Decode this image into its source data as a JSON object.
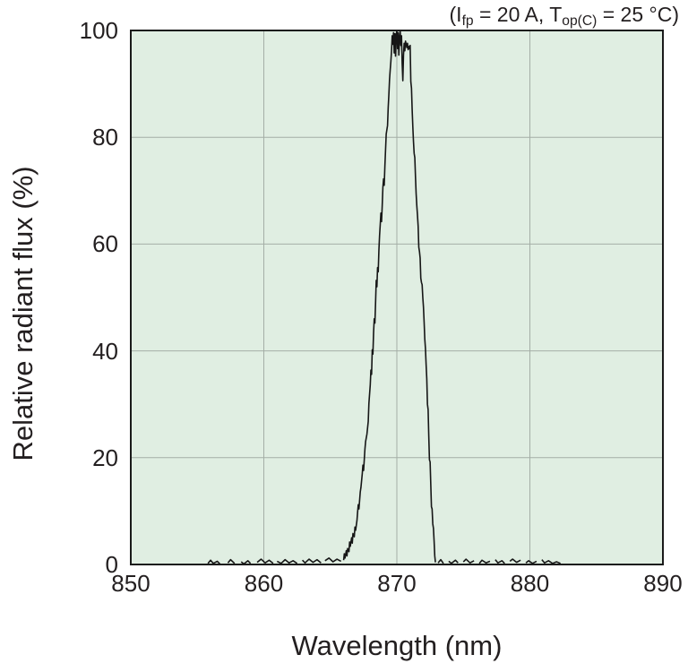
{
  "chart_data": {
    "type": "line",
    "title": "",
    "annotation_text": "(Ifp = 20 A, Top(C) = 25 °C)",
    "annotation_parts": [
      {
        "text": "(I"
      },
      {
        "text": "fp",
        "sub": true
      },
      {
        "text": " = 20 A, T"
      },
      {
        "text": "op(C)",
        "sub": true
      },
      {
        "text": " = 25 °C)"
      }
    ],
    "xlabel": "Wavelength (nm)",
    "ylabel": "Relative radiant flux (%)",
    "xlim": [
      850,
      890
    ],
    "ylim": [
      0,
      100
    ],
    "xticks": [
      850,
      860,
      870,
      880,
      890
    ],
    "yticks": [
      0,
      20,
      40,
      60,
      80,
      100
    ],
    "gridlines": {
      "x": [
        860,
        870,
        880
      ],
      "y": [
        20,
        40,
        60,
        80
      ]
    },
    "legend": "none",
    "peak_wavelength_nm": 870,
    "colors": {
      "plot_bg": "#e0eee2",
      "grid": "#a4aea6",
      "frame": "#1a1a1a",
      "trace": "#161616",
      "text": "#231f20"
    },
    "segments": [
      [
        [
          855.8,
          0.2
        ],
        [
          856.0,
          0.8
        ],
        [
          856.2,
          0.2
        ],
        [
          856.5,
          0.6
        ],
        [
          856.7,
          0.1
        ]
      ],
      [
        [
          857.3,
          0.3
        ],
        [
          857.5,
          0.9
        ],
        [
          857.8,
          0.2
        ]
      ],
      [
        [
          858.3,
          0.5
        ],
        [
          858.5,
          0.1
        ],
        [
          858.8,
          0.7
        ],
        [
          859.0,
          0.2
        ]
      ],
      [
        [
          859.5,
          0.4
        ],
        [
          859.8,
          1.0
        ],
        [
          860.1,
          0.3
        ],
        [
          860.4,
          0.8
        ],
        [
          860.7,
          0.2
        ]
      ],
      [
        [
          861.0,
          0.6
        ],
        [
          861.3,
          0.2
        ],
        [
          861.6,
          0.9
        ],
        [
          861.9,
          0.3
        ],
        [
          862.2,
          0.7
        ],
        [
          862.5,
          0.2
        ]
      ],
      [
        [
          862.9,
          0.8
        ],
        [
          863.1,
          0.3
        ],
        [
          863.4,
          1.0
        ],
        [
          863.7,
          0.4
        ],
        [
          864.0,
          0.9
        ],
        [
          864.3,
          0.3
        ]
      ],
      [
        [
          864.6,
          0.7
        ],
        [
          864.9,
          1.2
        ],
        [
          865.2,
          0.5
        ],
        [
          865.5,
          1.0
        ],
        [
          865.8,
          0.6
        ]
      ],
      [
        [
          866.0,
          0.8
        ],
        [
          866.05,
          2.0
        ],
        [
          866.1,
          1.2
        ],
        [
          866.2,
          2.6
        ],
        [
          866.25,
          1.6
        ],
        [
          866.3,
          3.0
        ],
        [
          866.4,
          2.4
        ],
        [
          866.45,
          4.2
        ],
        [
          866.5,
          3.4
        ],
        [
          866.6,
          5.0
        ],
        [
          866.65,
          4.0
        ],
        [
          866.7,
          5.8
        ],
        [
          866.8,
          5.2
        ],
        [
          866.85,
          7.0
        ],
        [
          866.9,
          6.4
        ],
        [
          867.0,
          8.2
        ],
        [
          867.05,
          9.8
        ],
        [
          867.1,
          11.2
        ],
        [
          867.15,
          10.4
        ],
        [
          867.25,
          13.6
        ],
        [
          867.3,
          14.4
        ],
        [
          867.4,
          17.0
        ],
        [
          867.45,
          18.6
        ],
        [
          867.5,
          17.6
        ],
        [
          867.6,
          21.6
        ],
        [
          867.65,
          23.0
        ],
        [
          867.75,
          24.4
        ],
        [
          867.85,
          26.8
        ],
        [
          867.9,
          30.2
        ],
        [
          868.0,
          33.6
        ],
        [
          868.05,
          36.4
        ],
        [
          868.1,
          35.6
        ],
        [
          868.15,
          40.2
        ],
        [
          868.2,
          39.4
        ],
        [
          868.25,
          43.4
        ],
        [
          868.3,
          46.0
        ],
        [
          868.35,
          45.2
        ],
        [
          868.4,
          49.0
        ],
        [
          868.45,
          53.2
        ],
        [
          868.5,
          52.0
        ],
        [
          868.55,
          55.6
        ],
        [
          868.6,
          54.8
        ],
        [
          868.65,
          58.8
        ],
        [
          868.7,
          61.6
        ],
        [
          868.75,
          63.6
        ],
        [
          868.8,
          65.8
        ],
        [
          868.85,
          64.2
        ],
        [
          868.9,
          67.2
        ],
        [
          868.95,
          70.6
        ],
        [
          869.0,
          72.2
        ],
        [
          869.05,
          71.0
        ],
        [
          869.1,
          74.6
        ],
        [
          869.15,
          77.6
        ],
        [
          869.2,
          80.6
        ],
        [
          869.3,
          82.2
        ],
        [
          869.35,
          85.6
        ],
        [
          869.4,
          88.0
        ],
        [
          869.45,
          90.8
        ],
        [
          869.5,
          92.6
        ],
        [
          869.55,
          94.2
        ],
        [
          869.6,
          96.2
        ],
        [
          869.65,
          99.0
        ],
        [
          869.7,
          97.4
        ],
        [
          869.75,
          99.6
        ],
        [
          869.8,
          95.8
        ],
        [
          869.85,
          99.4
        ],
        [
          869.9,
          95.2
        ],
        [
          869.95,
          99.2
        ],
        [
          870.0,
          100.0
        ],
        [
          870.05,
          96.6
        ],
        [
          870.1,
          99.6
        ],
        [
          870.15,
          95.4
        ],
        [
          870.2,
          98.6
        ],
        [
          870.25,
          100.0
        ],
        [
          870.3,
          97.2
        ],
        [
          870.35,
          99.0
        ],
        [
          870.4,
          93.8
        ],
        [
          870.45,
          90.6
        ],
        [
          870.5,
          95.4
        ],
        [
          870.55,
          97.6
        ],
        [
          870.6,
          96.2
        ],
        [
          870.65,
          98.0
        ],
        [
          870.7,
          97.4
        ],
        [
          870.75,
          96.8
        ],
        [
          870.8,
          97.6
        ],
        [
          870.85,
          96.4
        ],
        [
          870.9,
          97.0
        ],
        [
          870.95,
          96.6
        ],
        [
          871.0,
          97.2
        ],
        [
          871.05,
          90.4
        ],
        [
          871.1,
          89.2
        ],
        [
          871.15,
          85.2
        ],
        [
          871.2,
          82.0
        ],
        [
          871.25,
          79.2
        ],
        [
          871.3,
          77.0
        ],
        [
          871.35,
          76.2
        ],
        [
          871.4,
          72.6
        ],
        [
          871.45,
          69.4
        ],
        [
          871.5,
          67.2
        ],
        [
          871.55,
          65.4
        ],
        [
          871.6,
          63.4
        ],
        [
          871.65,
          59.4
        ],
        [
          871.7,
          58.6
        ],
        [
          871.75,
          57.4
        ],
        [
          871.8,
          53.6
        ],
        [
          871.85,
          52.8
        ],
        [
          871.9,
          52.4
        ],
        [
          871.95,
          50.0
        ],
        [
          872.0,
          48.2
        ],
        [
          872.05,
          45.4
        ],
        [
          872.1,
          42.2
        ],
        [
          872.15,
          40.4
        ],
        [
          872.2,
          37.4
        ],
        [
          872.25,
          34.8
        ],
        [
          872.3,
          30.0
        ],
        [
          872.35,
          29.0
        ],
        [
          872.4,
          24.0
        ],
        [
          872.45,
          19.6
        ],
        [
          872.5,
          19.2
        ],
        [
          872.55,
          15.0
        ],
        [
          872.6,
          10.8
        ],
        [
          872.65,
          10.4
        ],
        [
          872.7,
          7.6
        ],
        [
          872.75,
          6.8
        ],
        [
          872.8,
          4.4
        ],
        [
          872.85,
          1.6
        ],
        [
          872.9,
          0.4
        ]
      ],
      [
        [
          873.1,
          0.3
        ],
        [
          873.3,
          0.9
        ],
        [
          873.5,
          0.2
        ]
      ],
      [
        [
          873.9,
          0.6
        ],
        [
          874.1,
          0.2
        ],
        [
          874.4,
          0.8
        ],
        [
          874.6,
          0.3
        ]
      ],
      [
        [
          875.0,
          0.5
        ],
        [
          875.2,
          1.0
        ],
        [
          875.5,
          0.3
        ],
        [
          875.8,
          0.7
        ]
      ],
      [
        [
          876.2,
          0.2
        ],
        [
          876.4,
          0.8
        ],
        [
          876.7,
          0.3
        ],
        [
          877.0,
          0.6
        ]
      ],
      [
        [
          877.4,
          0.9
        ],
        [
          877.6,
          0.3
        ],
        [
          877.9,
          0.7
        ],
        [
          878.1,
          0.2
        ]
      ],
      [
        [
          878.5,
          0.6
        ],
        [
          878.7,
          1.0
        ],
        [
          879.0,
          0.4
        ],
        [
          879.3,
          0.8
        ]
      ],
      [
        [
          879.7,
          0.3
        ],
        [
          879.9,
          0.7
        ],
        [
          880.2,
          0.2
        ],
        [
          880.5,
          0.6
        ]
      ],
      [
        [
          880.9,
          0.9
        ],
        [
          881.1,
          0.3
        ],
        [
          881.4,
          0.7
        ],
        [
          881.7,
          0.2
        ],
        [
          882.0,
          0.5
        ],
        [
          882.3,
          0.2
        ]
      ]
    ]
  }
}
